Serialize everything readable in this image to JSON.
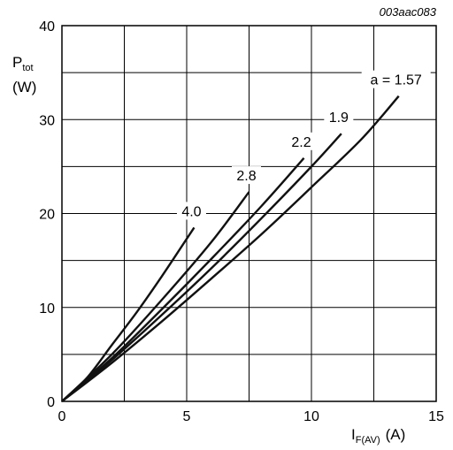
{
  "figure_code": "003aac083",
  "chart_data": {
    "type": "line",
    "ylabel": {
      "symbol": "P",
      "sub": "tot",
      "unit": "(W)"
    },
    "xlabel": {
      "symbol": "I",
      "sub": "F(AV)",
      "unit": "(A)"
    },
    "xlim": [
      0,
      15
    ],
    "ylim": [
      0,
      40
    ],
    "x_ticks": [
      "0",
      "5",
      "10",
      "15"
    ],
    "y_ticks": [
      "0",
      "10",
      "20",
      "30",
      "40"
    ],
    "grid": true,
    "series": [
      {
        "name": "4.0",
        "x": [
          0,
          1,
          2,
          3,
          4,
          5,
          5.3
        ],
        "y": [
          0,
          2.5,
          6.0,
          9.5,
          13.3,
          17.3,
          18.5
        ]
      },
      {
        "name": "2.8",
        "x": [
          0,
          2,
          4,
          6,
          7.5
        ],
        "y": [
          0,
          5.0,
          10.8,
          17.0,
          22.3
        ]
      },
      {
        "name": "2.2",
        "x": [
          0,
          2,
          4,
          6,
          8,
          9.7
        ],
        "y": [
          0,
          4.6,
          9.8,
          15.2,
          20.8,
          25.9
        ]
      },
      {
        "name": "1.9",
        "x": [
          0,
          2,
          4,
          6,
          8,
          10,
          11.2
        ],
        "y": [
          0,
          4.4,
          9.2,
          14.2,
          19.5,
          25.0,
          28.5
        ]
      },
      {
        "name": "a = 1.57",
        "x": [
          0,
          2,
          4,
          6,
          8,
          10,
          12,
          13.5
        ],
        "y": [
          0,
          4.1,
          8.5,
          13.1,
          17.8,
          22.8,
          27.9,
          32.5
        ]
      }
    ]
  }
}
